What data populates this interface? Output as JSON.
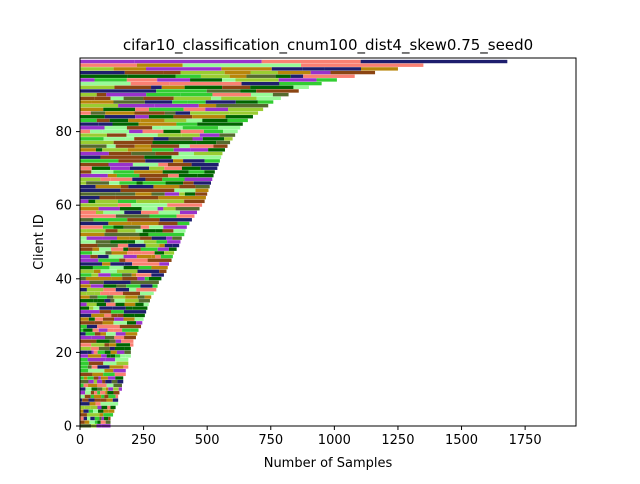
{
  "chart_data": {
    "type": "bar",
    "orientation": "horizontal-stacked",
    "title": "cifar10_classification_cnum100_dist4_skew0.75_seed0",
    "xlabel": "Number of Samples",
    "ylabel": "Client ID",
    "xlim": [
      0,
      1950
    ],
    "ylim": [
      0,
      100
    ],
    "xticks": [
      0,
      250,
      500,
      750,
      1000,
      1250,
      1500,
      1750
    ],
    "yticks": [
      0,
      20,
      40,
      60,
      80
    ],
    "grid": false,
    "legend": "none",
    "num_clients": 100,
    "num_classes": 10,
    "client_totals": [
      120,
      120,
      120,
      130,
      135,
      140,
      150,
      150,
      150,
      155,
      165,
      165,
      170,
      170,
      180,
      180,
      190,
      190,
      190,
      200,
      200,
      200,
      210,
      210,
      220,
      225,
      230,
      240,
      245,
      250,
      255,
      260,
      265,
      270,
      275,
      280,
      290,
      300,
      305,
      310,
      320,
      330,
      340,
      345,
      350,
      360,
      365,
      370,
      380,
      390,
      395,
      400,
      410,
      415,
      420,
      430,
      440,
      450,
      460,
      470,
      480,
      490,
      495,
      500,
      505,
      510,
      515,
      520,
      525,
      530,
      540,
      545,
      550,
      555,
      560,
      570,
      580,
      590,
      600,
      610,
      620,
      630,
      640,
      660,
      680,
      700,
      720,
      740,
      760,
      790,
      820,
      860,
      900,
      950,
      1010,
      1080,
      1160,
      1250,
      1350,
      1680
    ],
    "class_colors": [
      "#8B4513",
      "#FA8072",
      "#1E1E6E",
      "#9ACD32",
      "#98FB98",
      "#556B2F",
      "#B8860B",
      "#9932CC",
      "#006400",
      "#32CD32"
    ]
  }
}
